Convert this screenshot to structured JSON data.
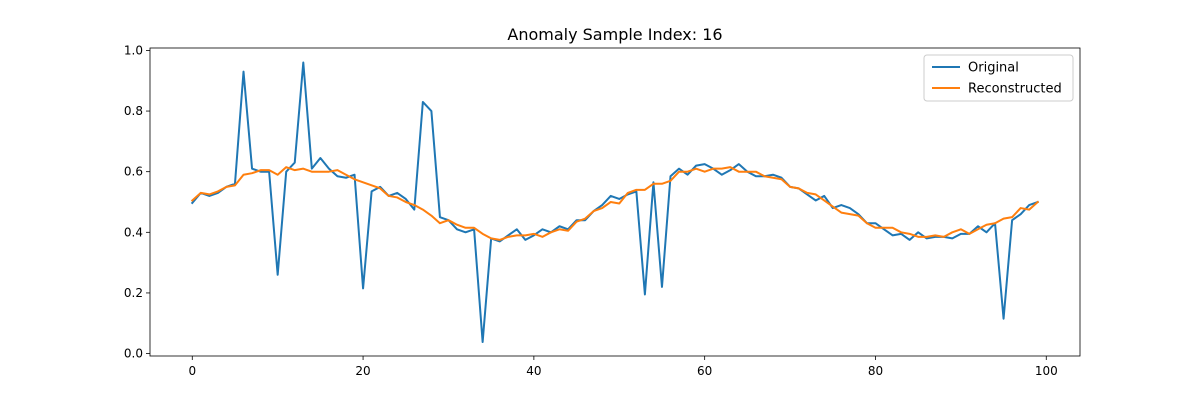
{
  "chart_data": {
    "type": "line",
    "title": "Anomaly Sample Index: 16",
    "xlabel": "",
    "ylabel": "",
    "xlim": [
      -4.95,
      103.95
    ],
    "ylim": [
      -0.008,
      1.008
    ],
    "x_ticks": [
      0,
      20,
      40,
      60,
      80,
      100
    ],
    "y_ticks": [
      0.0,
      0.2,
      0.4,
      0.6,
      0.8,
      1.0
    ],
    "x_tick_labels": [
      "0",
      "20",
      "40",
      "60",
      "80",
      "100"
    ],
    "y_tick_labels": [
      "0.0",
      "0.2",
      "0.4",
      "0.6",
      "0.8",
      "1.0"
    ],
    "grid": false,
    "legend_position": "top-right",
    "series": [
      {
        "name": "Original",
        "color": "#1f77b4",
        "values": [
          0.497,
          0.53,
          0.52,
          0.53,
          0.55,
          0.56,
          0.93,
          0.61,
          0.6,
          0.6,
          0.26,
          0.6,
          0.63,
          0.96,
          0.61,
          0.645,
          0.61,
          0.585,
          0.58,
          0.59,
          0.215,
          0.535,
          0.55,
          0.52,
          0.53,
          0.51,
          0.475,
          0.83,
          0.8,
          0.45,
          0.44,
          0.41,
          0.4,
          0.41,
          0.038,
          0.38,
          0.37,
          0.39,
          0.41,
          0.375,
          0.39,
          0.41,
          0.4,
          0.42,
          0.41,
          0.44,
          0.44,
          0.47,
          0.49,
          0.52,
          0.51,
          0.525,
          0.535,
          0.195,
          0.565,
          0.22,
          0.585,
          0.61,
          0.59,
          0.62,
          0.625,
          0.61,
          0.59,
          0.605,
          0.625,
          0.6,
          0.585,
          0.585,
          0.59,
          0.58,
          0.55,
          0.545,
          0.525,
          0.505,
          0.52,
          0.48,
          0.49,
          0.48,
          0.46,
          0.43,
          0.43,
          0.41,
          0.39,
          0.395,
          0.375,
          0.4,
          0.38,
          0.385,
          0.385,
          0.38,
          0.395,
          0.395,
          0.42,
          0.4,
          0.43,
          0.115,
          0.44,
          0.46,
          0.49,
          0.5
        ]
      },
      {
        "name": "Reconstructed",
        "color": "#ff7f0e",
        "values": [
          0.505,
          0.53,
          0.525,
          0.535,
          0.55,
          0.555,
          0.59,
          0.595,
          0.605,
          0.605,
          0.59,
          0.615,
          0.605,
          0.61,
          0.6,
          0.6,
          0.6,
          0.605,
          0.59,
          0.575,
          0.565,
          0.555,
          0.545,
          0.52,
          0.515,
          0.5,
          0.49,
          0.475,
          0.455,
          0.43,
          0.44,
          0.425,
          0.415,
          0.415,
          0.395,
          0.38,
          0.375,
          0.385,
          0.39,
          0.39,
          0.395,
          0.385,
          0.4,
          0.41,
          0.405,
          0.435,
          0.445,
          0.47,
          0.48,
          0.5,
          0.495,
          0.53,
          0.54,
          0.54,
          0.56,
          0.56,
          0.57,
          0.6,
          0.6,
          0.61,
          0.6,
          0.61,
          0.61,
          0.615,
          0.6,
          0.6,
          0.6,
          0.585,
          0.58,
          0.575,
          0.55,
          0.545,
          0.53,
          0.525,
          0.505,
          0.485,
          0.465,
          0.46,
          0.455,
          0.43,
          0.415,
          0.415,
          0.415,
          0.4,
          0.395,
          0.385,
          0.385,
          0.39,
          0.385,
          0.4,
          0.41,
          0.395,
          0.41,
          0.425,
          0.43,
          0.445,
          0.45,
          0.48,
          0.475,
          0.5
        ]
      }
    ]
  }
}
